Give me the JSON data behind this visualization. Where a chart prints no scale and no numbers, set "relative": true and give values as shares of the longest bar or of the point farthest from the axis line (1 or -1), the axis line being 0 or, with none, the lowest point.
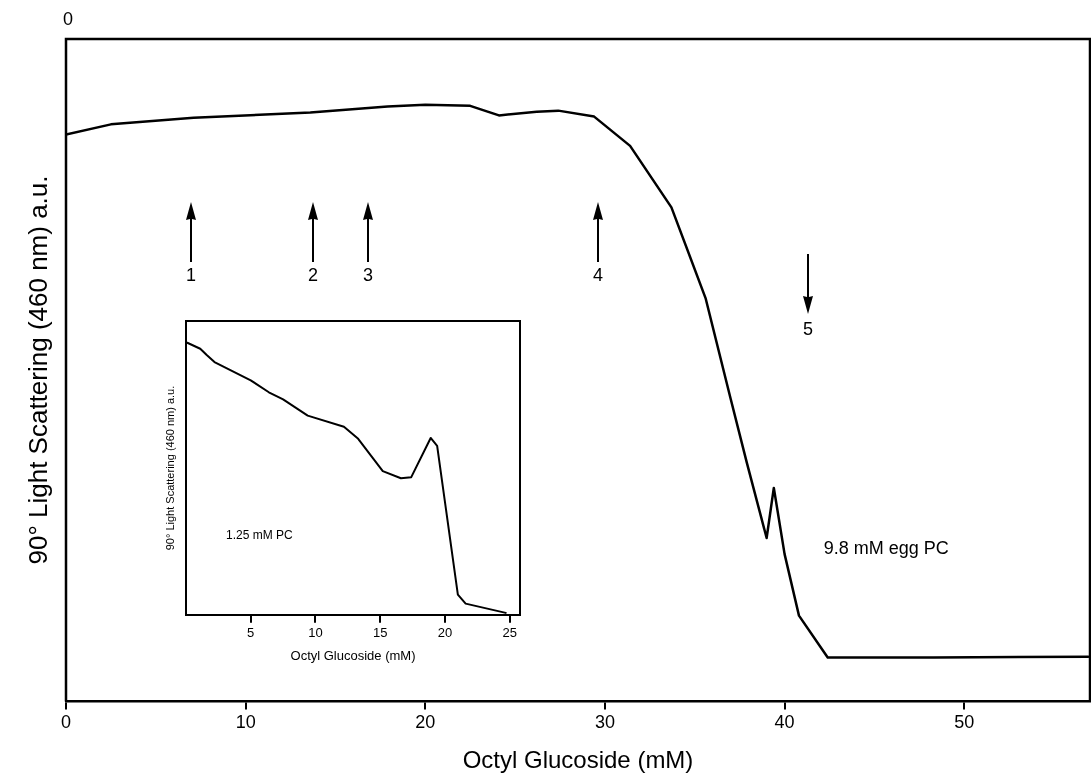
{
  "chart_data": [
    {
      "type": "line",
      "xlabel": "Octyl Glucoside (mM)",
      "ylabel": "90° Light Scattering (460 nm) a.u.",
      "relative": true,
      "xlim": [
        0,
        57
      ],
      "xticks": [
        0,
        10,
        20,
        30,
        40,
        50
      ],
      "legend": false,
      "grid": false,
      "x": [
        0,
        2.5,
        7.1,
        13.6,
        17.9,
        20,
        22.5,
        24.1,
        26.2,
        27.4,
        29.4,
        31.4,
        33.7,
        35.6,
        37.0,
        37.9,
        39.0,
        39.4,
        40.0,
        40.8,
        42.4,
        48.3,
        56.9
      ],
      "series": [
        {
          "name": "9.8 mM egg PC",
          "color": "#000000",
          "values": [
            0.95,
            0.967,
            0.978,
            0.987,
            0.997,
            1.0,
            0.998,
            0.982,
            0.988,
            0.99,
            0.98,
            0.931,
            0.828,
            0.676,
            0.507,
            0.4,
            0.274,
            0.358,
            0.247,
            0.144,
            0.074,
            0.074,
            0.075
          ]
        }
      ],
      "annotations": [
        "0",
        "1",
        "2",
        "3",
        "4",
        "5"
      ]
    },
    {
      "type": "line",
      "xlabel": "Octyl Glucoside (mM)",
      "ylabel": "90° Light Scattering (460 nm) a.u.",
      "relative": true,
      "xlim": [
        0,
        25.8
      ],
      "xticks": [
        5,
        10,
        15,
        20,
        25
      ],
      "legend": false,
      "grid": false,
      "x": [
        0.1,
        1.1,
        1.6,
        2.2,
        5.0,
        6.4,
        7.5,
        9.4,
        12.2,
        13.3,
        15.2,
        16.6,
        17.4,
        18.9,
        19.4,
        21.0,
        21.6,
        24.7
      ],
      "series": [
        {
          "name": "1.25 mM PC",
          "color": "#000000",
          "values": [
            1.0,
            0.978,
            0.955,
            0.929,
            0.862,
            0.818,
            0.792,
            0.732,
            0.691,
            0.647,
            0.528,
            0.502,
            0.506,
            0.65,
            0.621,
            0.074,
            0.041,
            0.007
          ]
        }
      ]
    }
  ]
}
